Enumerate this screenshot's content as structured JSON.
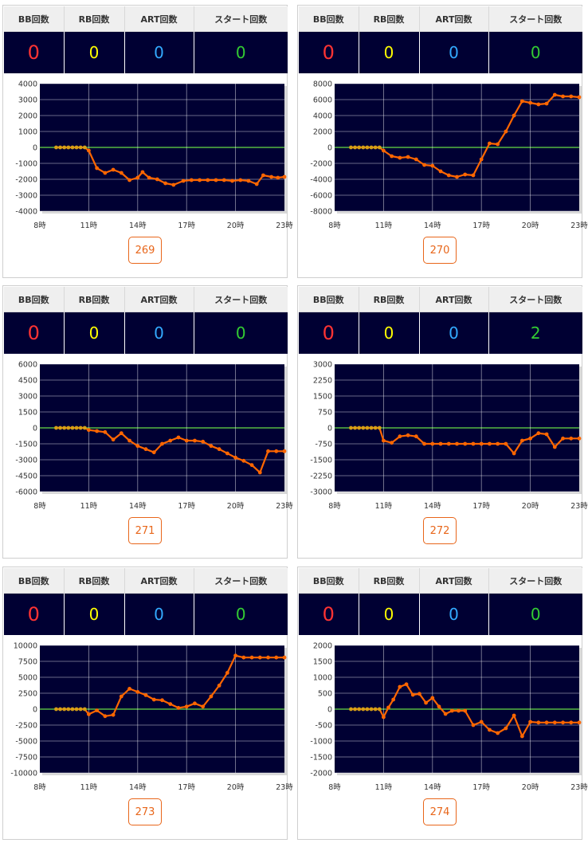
{
  "headers": {
    "bb": "BB回数",
    "rb": "RB回数",
    "art": "ART回数",
    "start": "スタート回数"
  },
  "x_ticks": [
    "8時",
    "11時",
    "14時",
    "17時",
    "20時",
    "23時"
  ],
  "colors": {
    "line": "#ff6600",
    "flat_dot": "#d4a017",
    "zero_line": "#66dd44",
    "plot_bg": "#000033"
  },
  "machines": [
    {
      "button": "269",
      "bb": "0",
      "rb": "0",
      "art": "0",
      "start": "0",
      "chart_data": {
        "type": "line",
        "ylim": [
          -4000,
          4000
        ],
        "y_ticks": [
          "4000",
          "3000",
          "2000",
          "1000",
          "0",
          "-1000",
          "-2000",
          "-3000",
          "-4000"
        ],
        "points": [
          [
            9,
            0
          ],
          [
            9.25,
            0
          ],
          [
            9.5,
            0
          ],
          [
            9.75,
            0
          ],
          [
            10,
            0
          ],
          [
            10.25,
            0
          ],
          [
            10.5,
            0
          ],
          [
            10.75,
            0
          ],
          [
            11,
            -200
          ],
          [
            11.5,
            -1300
          ],
          [
            12,
            -1600
          ],
          [
            12.5,
            -1400
          ],
          [
            13,
            -1600
          ],
          [
            13.5,
            -2050
          ],
          [
            14,
            -1900
          ],
          [
            14.3,
            -1550
          ],
          [
            14.7,
            -1900
          ],
          [
            15.2,
            -2000
          ],
          [
            15.7,
            -2250
          ],
          [
            16.2,
            -2350
          ],
          [
            16.8,
            -2100
          ],
          [
            17.3,
            -2050
          ],
          [
            17.8,
            -2050
          ],
          [
            18.3,
            -2050
          ],
          [
            18.8,
            -2050
          ],
          [
            19.3,
            -2050
          ],
          [
            19.8,
            -2100
          ],
          [
            20.3,
            -2050
          ],
          [
            20.8,
            -2100
          ],
          [
            21.3,
            -2300
          ],
          [
            21.7,
            -1750
          ],
          [
            22.2,
            -1850
          ],
          [
            22.6,
            -1900
          ],
          [
            23,
            -1850
          ]
        ]
      }
    },
    {
      "button": "270",
      "bb": "0",
      "rb": "0",
      "art": "0",
      "start": "0",
      "chart_data": {
        "type": "line",
        "ylim": [
          -8000,
          8000
        ],
        "y_ticks": [
          "8000",
          "6000",
          "4000",
          "2000",
          "0",
          "-2000",
          "-4000",
          "-6000",
          "-8000"
        ],
        "points": [
          [
            9,
            0
          ],
          [
            9.25,
            0
          ],
          [
            9.5,
            0
          ],
          [
            9.75,
            0
          ],
          [
            10,
            0
          ],
          [
            10.25,
            0
          ],
          [
            10.5,
            0
          ],
          [
            10.75,
            0
          ],
          [
            11,
            -400
          ],
          [
            11.5,
            -1100
          ],
          [
            12,
            -1300
          ],
          [
            12.5,
            -1200
          ],
          [
            13,
            -1500
          ],
          [
            13.5,
            -2200
          ],
          [
            14,
            -2300
          ],
          [
            14.5,
            -3000
          ],
          [
            15,
            -3500
          ],
          [
            15.5,
            -3700
          ],
          [
            16,
            -3400
          ],
          [
            16.5,
            -3500
          ],
          [
            17,
            -1500
          ],
          [
            17.5,
            500
          ],
          [
            18,
            400
          ],
          [
            18.5,
            2000
          ],
          [
            19,
            4000
          ],
          [
            19.5,
            5800
          ],
          [
            20,
            5600
          ],
          [
            20.5,
            5400
          ],
          [
            21,
            5500
          ],
          [
            21.5,
            6600
          ],
          [
            22,
            6400
          ],
          [
            22.5,
            6400
          ],
          [
            23,
            6300
          ]
        ]
      }
    },
    {
      "button": "271",
      "bb": "0",
      "rb": "0",
      "art": "0",
      "start": "0",
      "chart_data": {
        "type": "line",
        "ylim": [
          -6000,
          6000
        ],
        "y_ticks": [
          "6000",
          "4500",
          "3000",
          "1500",
          "0",
          "-1500",
          "-3000",
          "-4500",
          "-6000"
        ],
        "points": [
          [
            9,
            0
          ],
          [
            9.25,
            0
          ],
          [
            9.5,
            0
          ],
          [
            9.75,
            0
          ],
          [
            10,
            0
          ],
          [
            10.25,
            0
          ],
          [
            10.5,
            0
          ],
          [
            10.75,
            0
          ],
          [
            11,
            -200
          ],
          [
            11.5,
            -300
          ],
          [
            12,
            -400
          ],
          [
            12.5,
            -1100
          ],
          [
            13,
            -500
          ],
          [
            13.5,
            -1200
          ],
          [
            14,
            -1700
          ],
          [
            14.5,
            -2000
          ],
          [
            15,
            -2300
          ],
          [
            15.5,
            -1500
          ],
          [
            16,
            -1200
          ],
          [
            16.5,
            -900
          ],
          [
            17,
            -1200
          ],
          [
            17.5,
            -1200
          ],
          [
            18,
            -1300
          ],
          [
            18.5,
            -1700
          ],
          [
            19,
            -2000
          ],
          [
            19.5,
            -2400
          ],
          [
            20,
            -2800
          ],
          [
            20.5,
            -3100
          ],
          [
            21,
            -3500
          ],
          [
            21.5,
            -4200
          ],
          [
            22,
            -2200
          ],
          [
            22.5,
            -2200
          ],
          [
            23,
            -2200
          ]
        ]
      }
    },
    {
      "button": "272",
      "bb": "0",
      "rb": "0",
      "art": "0",
      "start": "2",
      "chart_data": {
        "type": "line",
        "ylim": [
          -3000,
          3000
        ],
        "y_ticks": [
          "3000",
          "2250",
          "1500",
          "750",
          "0",
          "-750",
          "-1500",
          "-2250",
          "-3000"
        ],
        "points": [
          [
            9,
            0
          ],
          [
            9.25,
            0
          ],
          [
            9.5,
            0
          ],
          [
            9.75,
            0
          ],
          [
            10,
            0
          ],
          [
            10.25,
            0
          ],
          [
            10.5,
            0
          ],
          [
            10.75,
            0
          ],
          [
            11,
            -600
          ],
          [
            11.5,
            -700
          ],
          [
            12,
            -400
          ],
          [
            12.5,
            -350
          ],
          [
            13,
            -400
          ],
          [
            13.5,
            -750
          ],
          [
            14,
            -750
          ],
          [
            14.5,
            -750
          ],
          [
            15,
            -750
          ],
          [
            15.5,
            -750
          ],
          [
            16,
            -750
          ],
          [
            16.5,
            -750
          ],
          [
            17,
            -750
          ],
          [
            17.5,
            -750
          ],
          [
            18,
            -750
          ],
          [
            18.5,
            -750
          ],
          [
            19,
            -1200
          ],
          [
            19.5,
            -600
          ],
          [
            20,
            -500
          ],
          [
            20.5,
            -250
          ],
          [
            21,
            -300
          ],
          [
            21.5,
            -900
          ],
          [
            22,
            -500
          ],
          [
            22.5,
            -500
          ],
          [
            23,
            -500
          ]
        ]
      }
    },
    {
      "button": "273",
      "bb": "0",
      "rb": "0",
      "art": "0",
      "start": "0",
      "chart_data": {
        "type": "line",
        "ylim": [
          -10000,
          10000
        ],
        "y_ticks": [
          "10000",
          "7500",
          "5000",
          "2500",
          "0",
          "-2500",
          "-5000",
          "-7500",
          "-10000"
        ],
        "points": [
          [
            9,
            0
          ],
          [
            9.25,
            0
          ],
          [
            9.5,
            0
          ],
          [
            9.75,
            0
          ],
          [
            10,
            0
          ],
          [
            10.25,
            0
          ],
          [
            10.5,
            0
          ],
          [
            10.75,
            0
          ],
          [
            11,
            -800
          ],
          [
            11.5,
            -200
          ],
          [
            12,
            -1100
          ],
          [
            12.5,
            -900
          ],
          [
            13,
            2000
          ],
          [
            13.5,
            3200
          ],
          [
            14,
            2700
          ],
          [
            14.5,
            2200
          ],
          [
            15,
            1500
          ],
          [
            15.5,
            1400
          ],
          [
            16,
            800
          ],
          [
            16.5,
            200
          ],
          [
            17,
            400
          ],
          [
            17.5,
            900
          ],
          [
            18,
            400
          ],
          [
            18.5,
            2000
          ],
          [
            19,
            3700
          ],
          [
            19.5,
            5700
          ],
          [
            20,
            8400
          ],
          [
            20.5,
            8100
          ],
          [
            21,
            8100
          ],
          [
            21.5,
            8100
          ],
          [
            22,
            8100
          ],
          [
            22.5,
            8100
          ],
          [
            23,
            8100
          ]
        ]
      }
    },
    {
      "button": "274",
      "bb": "0",
      "rb": "0",
      "art": "0",
      "start": "0",
      "chart_data": {
        "type": "line",
        "ylim": [
          -2000,
          2000
        ],
        "y_ticks": [
          "2000",
          "1500",
          "1000",
          "500",
          "0",
          "-500",
          "-1000",
          "-1500",
          "-2000"
        ],
        "points": [
          [
            9,
            0
          ],
          [
            9.25,
            0
          ],
          [
            9.5,
            0
          ],
          [
            9.75,
            0
          ],
          [
            10,
            0
          ],
          [
            10.25,
            0
          ],
          [
            10.5,
            0
          ],
          [
            10.75,
            0
          ],
          [
            11,
            -250
          ],
          [
            11.3,
            50
          ],
          [
            11.6,
            300
          ],
          [
            12,
            700
          ],
          [
            12.4,
            780
          ],
          [
            12.8,
            450
          ],
          [
            13.2,
            480
          ],
          [
            13.6,
            200
          ],
          [
            14,
            350
          ],
          [
            14.4,
            80
          ],
          [
            14.8,
            -150
          ],
          [
            15.2,
            -50
          ],
          [
            15.6,
            -50
          ],
          [
            16,
            -50
          ],
          [
            16.5,
            -500
          ],
          [
            17,
            -400
          ],
          [
            17.5,
            -650
          ],
          [
            18,
            -750
          ],
          [
            18.5,
            -600
          ],
          [
            19,
            -200
          ],
          [
            19.5,
            -850
          ],
          [
            20,
            -400
          ],
          [
            20.5,
            -420
          ],
          [
            21,
            -420
          ],
          [
            21.5,
            -420
          ],
          [
            22,
            -420
          ],
          [
            22.5,
            -420
          ],
          [
            23,
            -420
          ]
        ]
      }
    }
  ]
}
